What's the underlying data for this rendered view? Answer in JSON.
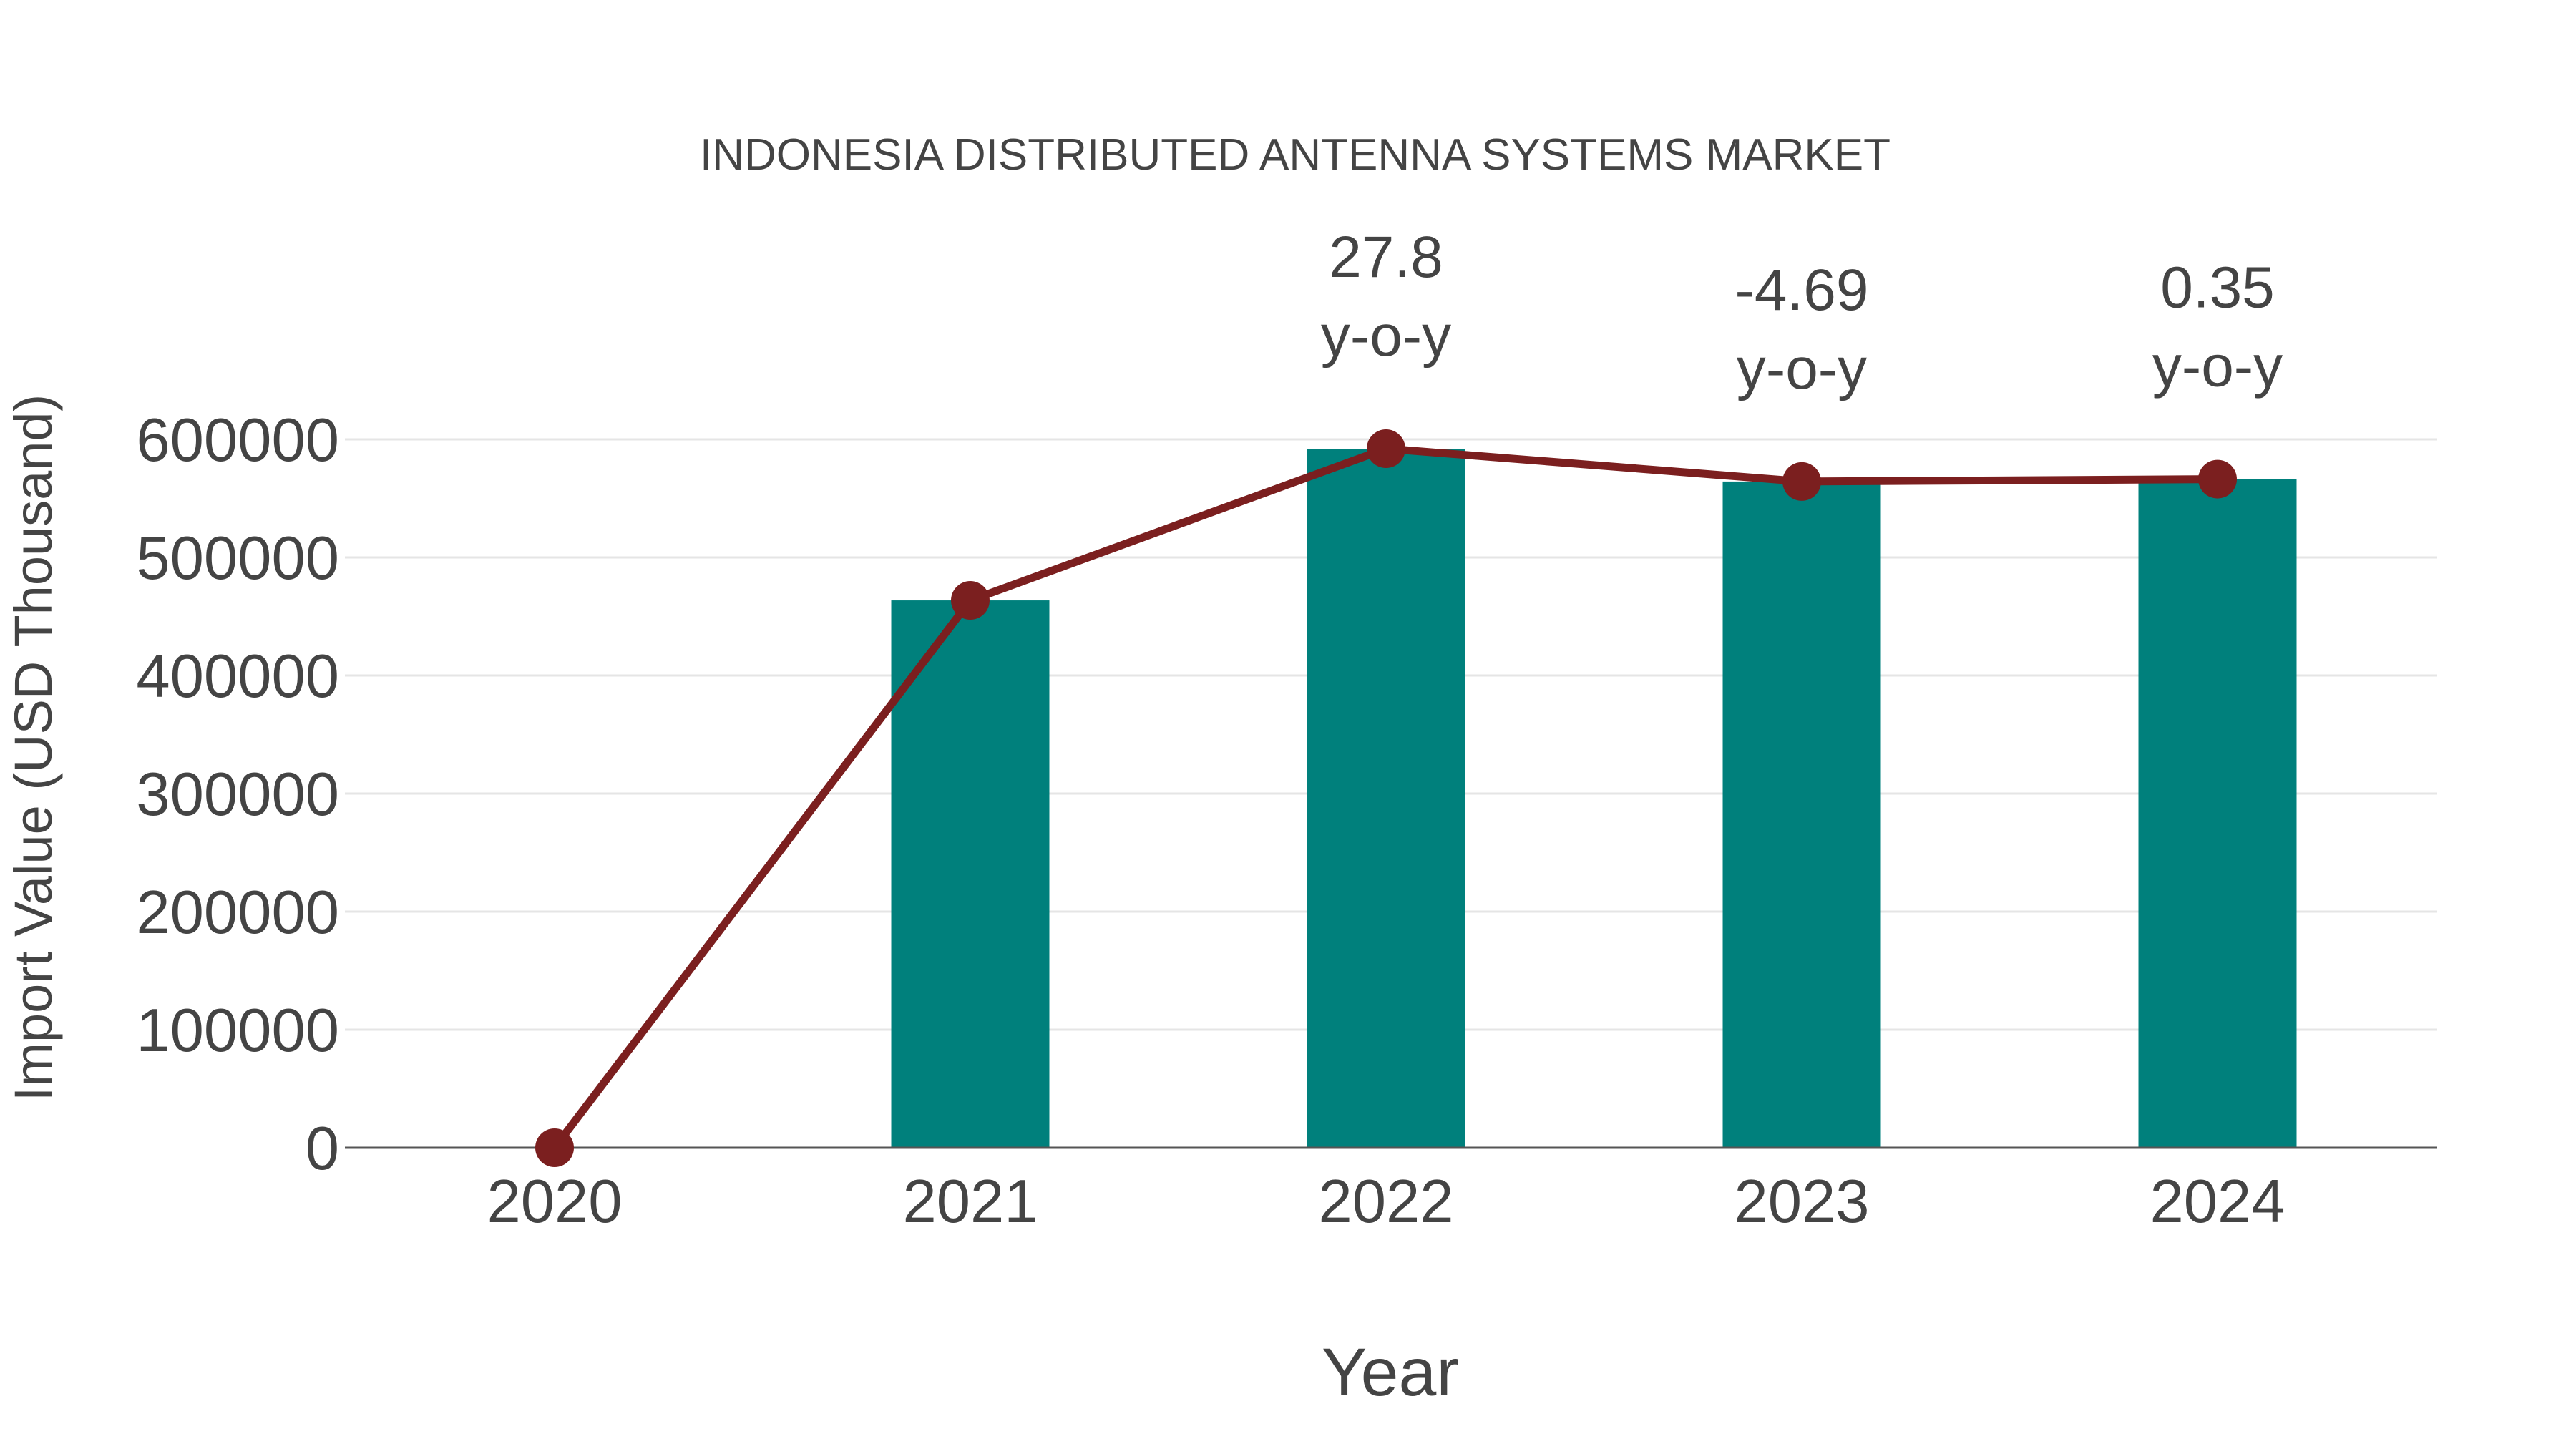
{
  "chart_data": {
    "type": "bar",
    "title": "INDONESIA DISTRIBUTED ANTENNA SYSTEMS MARKET",
    "xlabel": "Year",
    "ylabel": "Import Value (USD Thousand)",
    "categories": [
      "2020",
      "2021",
      "2022",
      "2023",
      "2024"
    ],
    "series": [
      {
        "name": "Import Value",
        "type": "bar",
        "color": "#00807c",
        "values": [
          0,
          463600,
          592100,
          564300,
          566300
        ]
      },
      {
        "name": "Import Value (trend)",
        "type": "line",
        "color": "#7b1f1f",
        "values": [
          0,
          463600,
          592100,
          564300,
          566300
        ]
      }
    ],
    "annotations": [
      {
        "category": "2022",
        "value": "27.8",
        "suffix": "y-o-y"
      },
      {
        "category": "2023",
        "value": "-4.69",
        "suffix": "y-o-y"
      },
      {
        "category": "2024",
        "value": "0.35",
        "suffix": "y-o-y"
      }
    ],
    "yticks": [
      0,
      100000,
      200000,
      300000,
      400000,
      500000,
      600000
    ],
    "ytick_labels": [
      "0",
      "100000",
      "200000",
      "300000",
      "400000",
      "500000",
      "600000"
    ],
    "ylim": [
      0,
      600000
    ],
    "grid": true,
    "legend": "none"
  }
}
